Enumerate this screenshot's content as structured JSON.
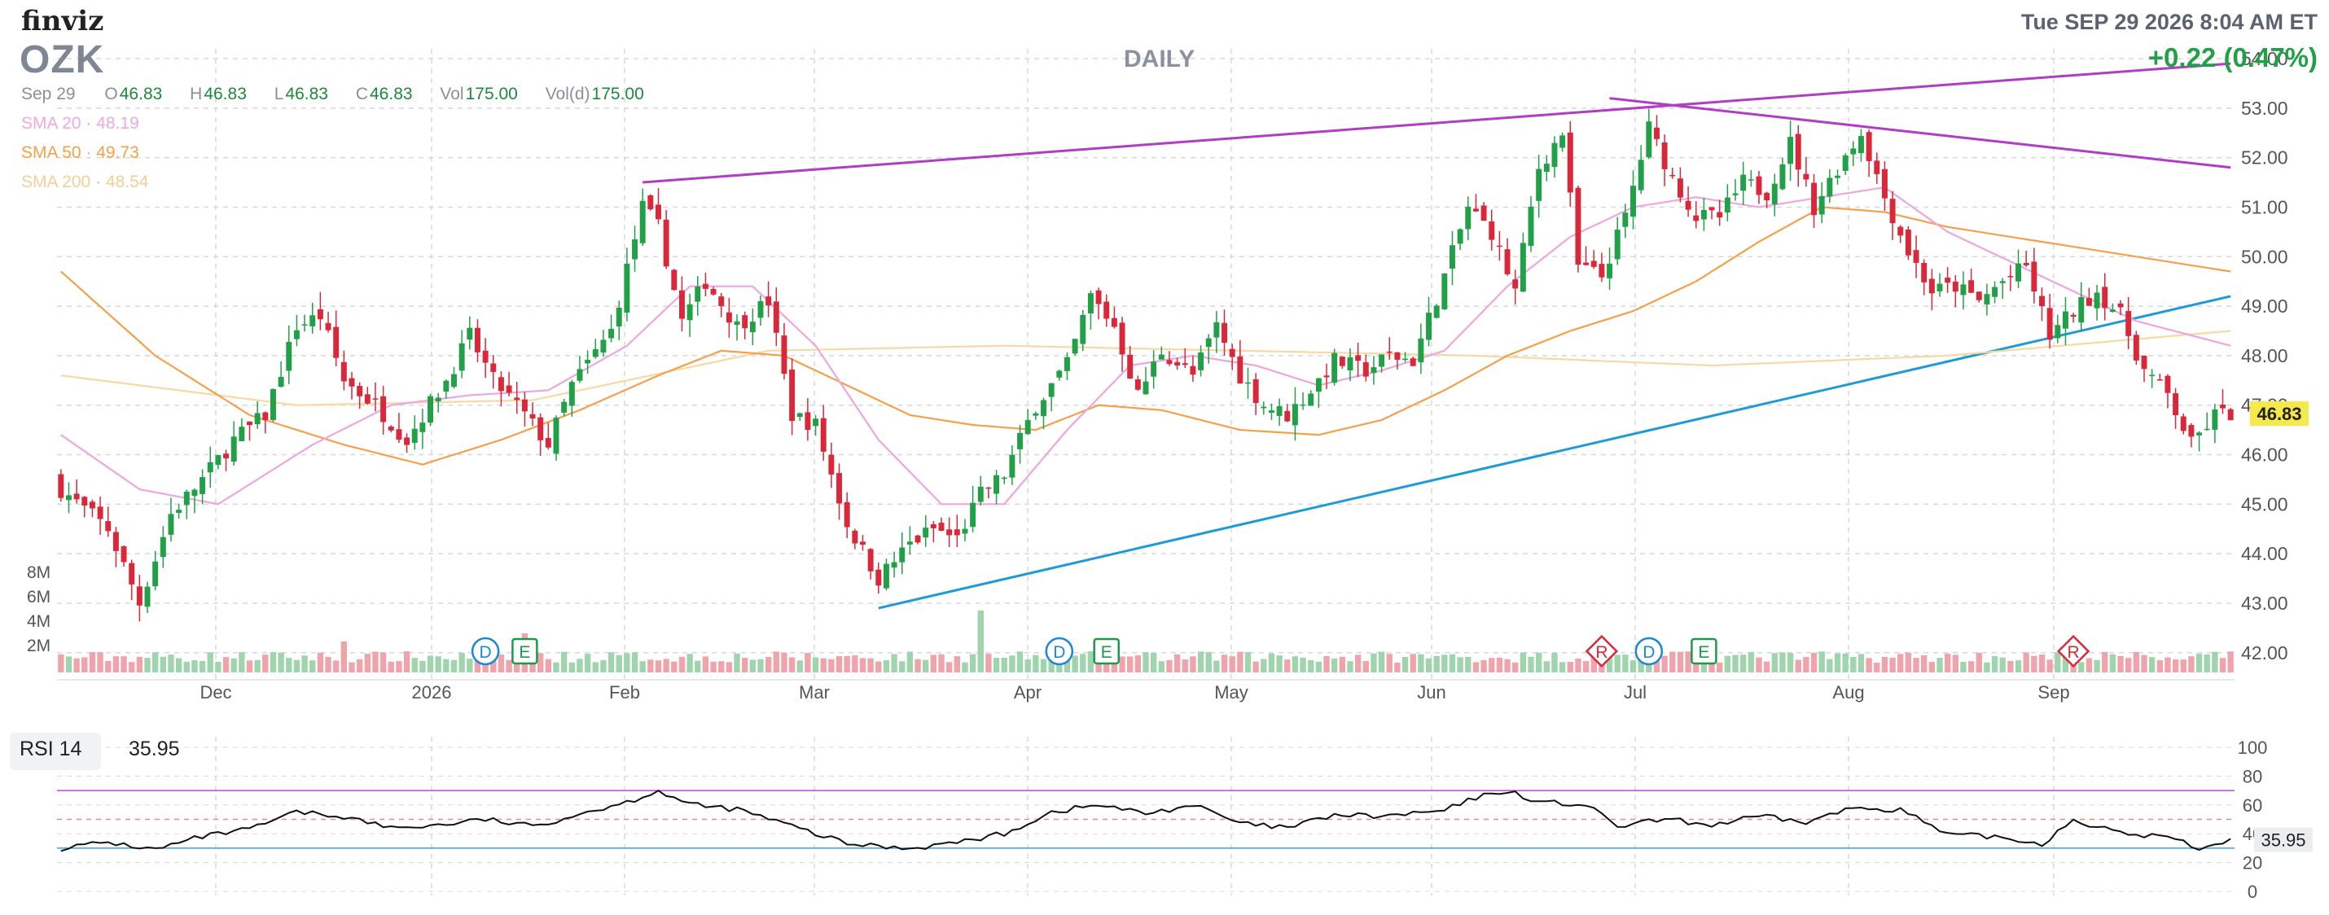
{
  "header": {
    "logo": "finviz",
    "ticker": "OZK",
    "timeframe": "DAILY",
    "datetime": "Tue SEP 29 2026 8:04 AM ET",
    "change": "+0.22 (0.47%)",
    "ohlc": {
      "date": "Sep 29",
      "open_label": "O",
      "open": "46.83",
      "high_label": "H",
      "high": "46.83",
      "low_label": "L",
      "low": "46.83",
      "close_label": "C",
      "close": "46.83",
      "vol_label": "Vol",
      "vol": "175.00",
      "vold_label": "Vol(d)",
      "vold": "175.00"
    },
    "sma": [
      {
        "label": "SMA 20",
        "value": "48.19",
        "color": "#f0a8e0"
      },
      {
        "label": "SMA 50",
        "value": "49.73",
        "color": "#f5a04a"
      },
      {
        "label": "SMA 200",
        "value": "48.54",
        "color": "#f8d9a8"
      }
    ]
  },
  "colors": {
    "up": "#22a047",
    "down": "#d9283a",
    "vol_up": "#9fd4ad",
    "vol_down": "#efa3aa",
    "trend_magenta": "#b03ec4",
    "trend_blue": "#1e9bd7",
    "grid": "#d5d8dc",
    "price_tag": "#f6e94a"
  },
  "chart_data": [
    {
      "type": "candlestick",
      "ticker": "OZK",
      "x_labels": [
        "Dec",
        "2026",
        "Feb",
        "Mar",
        "Apr",
        "May",
        "Jun",
        "Jul",
        "Aug",
        "Sep"
      ],
      "y_ticks": [
        "42.00",
        "43.00",
        "44.00",
        "45.00",
        "46.00",
        "47.00",
        "48.00",
        "49.00",
        "50.00",
        "51.00",
        "52.00",
        "53.00",
        "54.00"
      ],
      "ylim": [
        41.7,
        54.0
      ],
      "last_price": "46.83",
      "close_path": [
        [
          0,
          45.3
        ],
        [
          6,
          44.5
        ],
        [
          10,
          43.0
        ],
        [
          14,
          44.8
        ],
        [
          18,
          45.5
        ],
        [
          22,
          46.3
        ],
        [
          26,
          46.8
        ],
        [
          30,
          48.6
        ],
        [
          33,
          48.8
        ],
        [
          36,
          47.5
        ],
        [
          40,
          47.0
        ],
        [
          44,
          46.3
        ],
        [
          46,
          46.8
        ],
        [
          49,
          47.5
        ],
        [
          52,
          48.4
        ],
        [
          55,
          47.5
        ],
        [
          58,
          47.0
        ],
        [
          62,
          46.2
        ],
        [
          65,
          47.4
        ],
        [
          70,
          48.5
        ],
        [
          74,
          51.0
        ],
        [
          76,
          50.6
        ],
        [
          79,
          48.7
        ],
        [
          82,
          49.5
        ],
        [
          86,
          48.6
        ],
        [
          90,
          49.1
        ],
        [
          93,
          46.8
        ],
        [
          96,
          46.6
        ],
        [
          100,
          44.6
        ],
        [
          104,
          43.5
        ],
        [
          108,
          44.2
        ],
        [
          111,
          44.5
        ],
        [
          114,
          44.3
        ],
        [
          117,
          45.2
        ],
        [
          120,
          45.6
        ],
        [
          124,
          47.0
        ],
        [
          128,
          47.8
        ],
        [
          131,
          49.2
        ],
        [
          134,
          48.6
        ],
        [
          137,
          47.2
        ],
        [
          140,
          48.1
        ],
        [
          144,
          47.6
        ],
        [
          147,
          48.6
        ],
        [
          150,
          47.6
        ],
        [
          153,
          47.0
        ],
        [
          156,
          46.8
        ],
        [
          159,
          47.3
        ],
        [
          162,
          47.9
        ],
        [
          166,
          47.7
        ],
        [
          169,
          48.0
        ],
        [
          172,
          47.9
        ],
        [
          176,
          49.6
        ],
        [
          179,
          51.0
        ],
        [
          182,
          50.5
        ],
        [
          185,
          49.3
        ],
        [
          188,
          51.8
        ],
        [
          191,
          52.5
        ],
        [
          193,
          49.8
        ],
        [
          196,
          49.6
        ],
        [
          199,
          50.8
        ],
        [
          202,
          52.6
        ],
        [
          205,
          51.6
        ],
        [
          208,
          50.8
        ],
        [
          211,
          50.8
        ],
        [
          214,
          51.5
        ],
        [
          217,
          51.3
        ],
        [
          220,
          52.3
        ],
        [
          223,
          51.0
        ],
        [
          226,
          51.8
        ],
        [
          229,
          52.5
        ],
        [
          232,
          51.2
        ],
        [
          235,
          50.1
        ],
        [
          238,
          49.3
        ],
        [
          241,
          49.4
        ],
        [
          244,
          49.1
        ],
        [
          247,
          49.5
        ],
        [
          250,
          49.8
        ],
        [
          253,
          48.4
        ],
        [
          256,
          48.9
        ],
        [
          259,
          49.3
        ],
        [
          262,
          48.8
        ],
        [
          265,
          47.7
        ],
        [
          268,
          47.2
        ],
        [
          271,
          46.2
        ],
        [
          274,
          46.8
        ],
        [
          276,
          46.83
        ]
      ],
      "volume_axis": [
        "2M",
        "4M",
        "6M",
        "8M"
      ],
      "events": [
        {
          "label": "D",
          "type": "dividend",
          "bar": 54
        },
        {
          "label": "E",
          "type": "earnings",
          "bar": 59
        },
        {
          "label": "D",
          "type": "dividend",
          "bar": 127
        },
        {
          "label": "E",
          "type": "earnings",
          "bar": 133
        },
        {
          "label": "R",
          "type": "rating",
          "bar": 196
        },
        {
          "label": "D",
          "type": "dividend",
          "bar": 202
        },
        {
          "label": "E",
          "type": "earnings",
          "bar": 209
        },
        {
          "label": "R",
          "type": "rating",
          "bar": 256
        }
      ],
      "sma20_path": [
        [
          0,
          46.4
        ],
        [
          10,
          45.3
        ],
        [
          20,
          45.0
        ],
        [
          32,
          46.2
        ],
        [
          42,
          47.0
        ],
        [
          52,
          47.2
        ],
        [
          62,
          47.3
        ],
        [
          72,
          48.2
        ],
        [
          80,
          49.4
        ],
        [
          88,
          49.4
        ],
        [
          96,
          48.2
        ],
        [
          104,
          46.3
        ],
        [
          112,
          45.0
        ],
        [
          120,
          45.0
        ],
        [
          128,
          46.5
        ],
        [
          136,
          47.8
        ],
        [
          144,
          48.0
        ],
        [
          152,
          47.8
        ],
        [
          160,
          47.4
        ],
        [
          168,
          47.7
        ],
        [
          176,
          48.1
        ],
        [
          184,
          49.4
        ],
        [
          192,
          50.4
        ],
        [
          200,
          51.0
        ],
        [
          208,
          51.2
        ],
        [
          216,
          51.0
        ],
        [
          224,
          51.2
        ],
        [
          232,
          51.4
        ],
        [
          240,
          50.5
        ],
        [
          248,
          49.9
        ],
        [
          256,
          49.3
        ],
        [
          264,
          48.7
        ],
        [
          276,
          48.2
        ]
      ],
      "sma50_path": [
        [
          0,
          49.7
        ],
        [
          12,
          48.0
        ],
        [
          24,
          46.8
        ],
        [
          36,
          46.2
        ],
        [
          46,
          45.8
        ],
        [
          56,
          46.3
        ],
        [
          66,
          46.9
        ],
        [
          76,
          47.6
        ],
        [
          84,
          48.1
        ],
        [
          92,
          48.0
        ],
        [
          100,
          47.4
        ],
        [
          108,
          46.8
        ],
        [
          116,
          46.6
        ],
        [
          124,
          46.5
        ],
        [
          132,
          47.0
        ],
        [
          140,
          46.9
        ],
        [
          150,
          46.5
        ],
        [
          160,
          46.4
        ],
        [
          168,
          46.7
        ],
        [
          176,
          47.3
        ],
        [
          184,
          48.0
        ],
        [
          192,
          48.5
        ],
        [
          200,
          48.9
        ],
        [
          208,
          49.5
        ],
        [
          216,
          50.3
        ],
        [
          224,
          51.0
        ],
        [
          232,
          50.9
        ],
        [
          240,
          50.6
        ],
        [
          248,
          50.4
        ],
        [
          256,
          50.2
        ],
        [
          264,
          50.0
        ],
        [
          276,
          49.7
        ]
      ],
      "sma200_path": [
        [
          0,
          47.6
        ],
        [
          30,
          47.0
        ],
        [
          60,
          47.1
        ],
        [
          90,
          48.1
        ],
        [
          120,
          48.2
        ],
        [
          150,
          48.1
        ],
        [
          180,
          48.0
        ],
        [
          210,
          47.8
        ],
        [
          240,
          48.0
        ],
        [
          276,
          48.5
        ]
      ],
      "trendlines": [
        {
          "name": "upper-resistance",
          "color": "magenta",
          "from": [
            74,
            51.5
          ],
          "to": [
            276,
            53.9
          ]
        },
        {
          "name": "recent-resistance",
          "color": "magenta",
          "from": [
            197,
            53.2
          ],
          "to": [
            276,
            51.8
          ]
        },
        {
          "name": "support",
          "color": "blue",
          "from": [
            104,
            42.9
          ],
          "to": [
            276,
            49.2
          ]
        }
      ]
    },
    {
      "type": "line",
      "series_label": "RSI 14",
      "last_value": "35.95",
      "y_ticks": [
        "0",
        "20",
        "40",
        "60",
        "80",
        "100"
      ],
      "ylim": [
        0,
        100
      ],
      "overbought": 70,
      "oversold": 30,
      "midline": 50,
      "values_path": [
        [
          0,
          30
        ],
        [
          6,
          34
        ],
        [
          12,
          29
        ],
        [
          18,
          38
        ],
        [
          24,
          43
        ],
        [
          30,
          55
        ],
        [
          36,
          52
        ],
        [
          42,
          44
        ],
        [
          48,
          46
        ],
        [
          54,
          50
        ],
        [
          60,
          45
        ],
        [
          66,
          54
        ],
        [
          72,
          62
        ],
        [
          76,
          70
        ],
        [
          80,
          60
        ],
        [
          86,
          57
        ],
        [
          92,
          47
        ],
        [
          100,
          33
        ],
        [
          108,
          30
        ],
        [
          114,
          34
        ],
        [
          120,
          40
        ],
        [
          126,
          55
        ],
        [
          132,
          60
        ],
        [
          138,
          54
        ],
        [
          144,
          60
        ],
        [
          150,
          47
        ],
        [
          156,
          44
        ],
        [
          162,
          53
        ],
        [
          168,
          52
        ],
        [
          176,
          56
        ],
        [
          180,
          65
        ],
        [
          184,
          70
        ],
        [
          188,
          62
        ],
        [
          194,
          60
        ],
        [
          198,
          45
        ],
        [
          204,
          50
        ],
        [
          210,
          46
        ],
        [
          216,
          52
        ],
        [
          222,
          48
        ],
        [
          228,
          58
        ],
        [
          234,
          57
        ],
        [
          240,
          39
        ],
        [
          246,
          38
        ],
        [
          252,
          33
        ],
        [
          256,
          50
        ],
        [
          262,
          40
        ],
        [
          268,
          38
        ],
        [
          272,
          30
        ],
        [
          276,
          36
        ]
      ]
    }
  ],
  "rsi": {
    "label": "RSI 14",
    "value": "35.95"
  }
}
